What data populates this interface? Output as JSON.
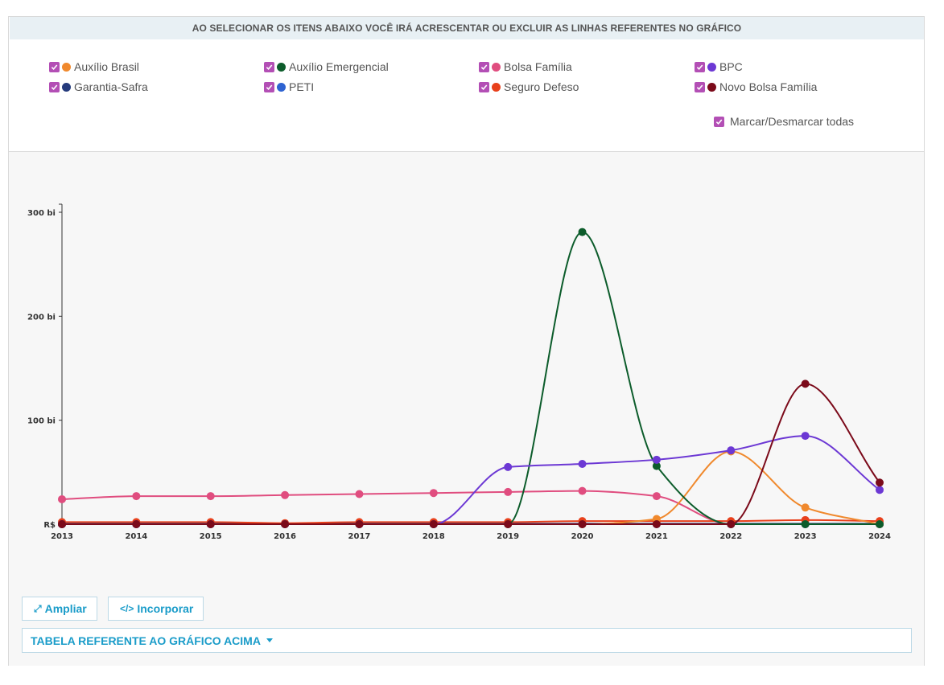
{
  "banner": "AO SELECIONAR OS ITENS ABAIXO VOCÊ IRÁ ACRESCENTAR OU EXCLUIR AS LINHAS REFERENTES NO GRÁFICO",
  "legend": [
    {
      "label": "Auxílio Brasil",
      "color": "#f0892d"
    },
    {
      "label": "Auxílio Emergencial",
      "color": "#0c5c2b"
    },
    {
      "label": "Bolsa Família",
      "color": "#e04d7f"
    },
    {
      "label": "BPC",
      "color": "#6c38d4"
    },
    {
      "label": "Garantia-Safra",
      "color": "#253b7c"
    },
    {
      "label": "PETI",
      "color": "#2e63d1"
    },
    {
      "label": "Seguro Defeso",
      "color": "#e8401b"
    },
    {
      "label": "Novo Bolsa Família",
      "color": "#7b0a1a"
    }
  ],
  "toggle_all": "Marcar/Desmarcar todas",
  "buttons": {
    "ampliar": "Ampliar",
    "incorporar": "Incorporar"
  },
  "table_toggle": "TABELA REFERENTE AO GRÁFICO ACIMA",
  "chart_data": {
    "type": "line",
    "x": [
      2013,
      2014,
      2015,
      2016,
      2017,
      2018,
      2019,
      2020,
      2021,
      2022,
      2023,
      2024
    ],
    "y_unit": "bi",
    "y_prefix": "R$",
    "yticks": [
      100,
      200,
      300
    ],
    "ylim": [
      0,
      300
    ],
    "series": [
      {
        "name": "Bolsa Família",
        "color": "#e04d7f",
        "values": [
          24,
          27,
          27,
          28,
          29,
          30,
          31,
          32,
          27,
          0,
          0,
          0
        ]
      },
      {
        "name": "Garantia-Safra",
        "color": "#253b7c",
        "values": [
          0.5,
          0.5,
          0.5,
          0.5,
          0.5,
          0.5,
          0.5,
          0.5,
          0.5,
          0.5,
          0.5,
          0.5
        ]
      },
      {
        "name": "PETI",
        "color": "#2e63d1",
        "values": [
          0,
          0,
          0,
          0,
          0,
          0,
          0,
          0,
          0,
          0,
          0,
          0
        ]
      },
      {
        "name": "Seguro Defeso",
        "color": "#e8401b",
        "values": [
          2,
          2,
          2,
          1,
          2,
          2,
          2,
          3,
          3,
          3,
          4,
          3
        ]
      },
      {
        "name": "Auxílio Brasil",
        "color": "#f0892d",
        "values": [
          0,
          0,
          0,
          0,
          0,
          0,
          0,
          0,
          5,
          70,
          16,
          0
        ]
      },
      {
        "name": "Auxílio Emergencial",
        "color": "#0c5c2b",
        "values": [
          0,
          0,
          0,
          0,
          0,
          0,
          0,
          281,
          56,
          0,
          0,
          0
        ]
      },
      {
        "name": "BPC",
        "color": "#6c38d4",
        "values": [
          0,
          0,
          0,
          0,
          0,
          0,
          55,
          58,
          62,
          71,
          85,
          33
        ]
      },
      {
        "name": "Novo Bolsa Família",
        "color": "#7b0a1a",
        "values": [
          0,
          0,
          0,
          0,
          0,
          0,
          0,
          0,
          0,
          0,
          135,
          40
        ]
      }
    ]
  }
}
